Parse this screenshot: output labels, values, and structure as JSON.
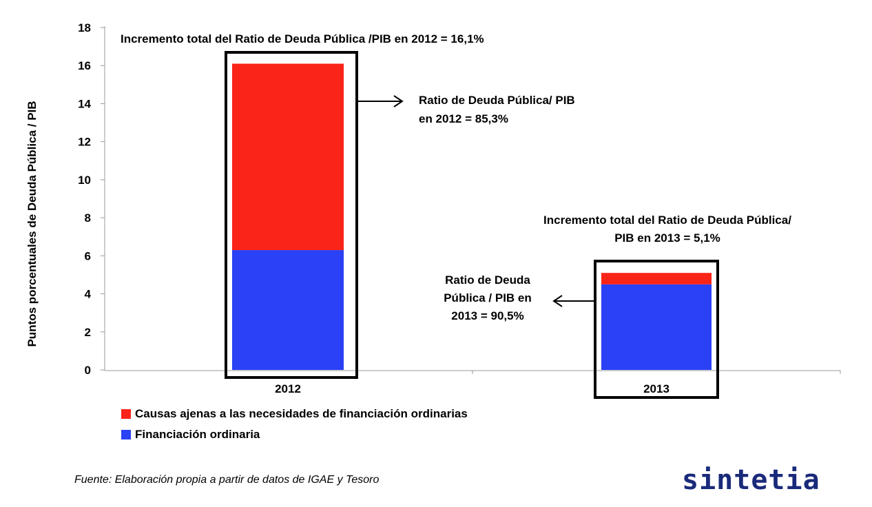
{
  "chart_data": {
    "type": "bar",
    "stacked": true,
    "categories": [
      "2012",
      "2013"
    ],
    "series": [
      {
        "name": "Financiación ordinaria",
        "values": [
          6.3,
          4.5
        ],
        "color": "#2a41f5"
      },
      {
        "name": "Causas ajenas a las necesidades de financiación ordinarias",
        "values": [
          9.8,
          0.6
        ],
        "color": "#fb2418"
      }
    ],
    "ylabel": "Puntos porcentuales de Deuda Pública / PIB",
    "ylim": [
      0,
      18
    ],
    "yticks": [
      0,
      2,
      4,
      6,
      8,
      10,
      12,
      14,
      16,
      18
    ],
    "grid": false,
    "legend_position": "bottom-left",
    "annotations": {
      "total_2012": "Incremento total del Ratio de Deuda Pública /PIB en 2012 = 16,1%",
      "ratio_2012_line1": "Ratio de Deuda Pública/ PIB",
      "ratio_2012_line2": "en 2012 = 85,3%",
      "total_2013_line1": "Incremento total del Ratio de Deuda Pública/",
      "total_2013_line2": "PIB en 2013 = 5,1%",
      "ratio_2013_line1": "Ratio de Deuda",
      "ratio_2013_line2": "Pública / PIB en",
      "ratio_2013_line3": "2013 = 90,5%"
    }
  },
  "source": "Fuente: Elaboración propia a partir de datos de IGAE y Tesoro",
  "logo": "sintetia"
}
